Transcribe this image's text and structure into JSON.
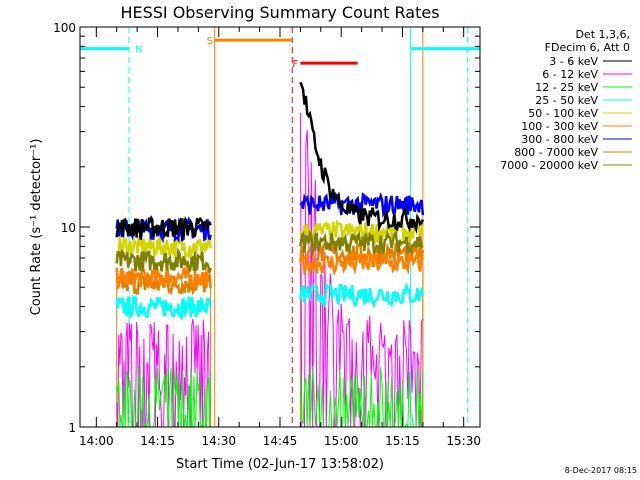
{
  "chart_data": {
    "type": "line",
    "title": "HESSI Observing Summary Count Rates",
    "xlabel": "Start Time (02-Jun-17 13:58:02)",
    "ylabel": "Count Rate (s⁻¹ detector⁻¹)",
    "yscale": "log",
    "ylim": [
      1,
      100
    ],
    "xlim_minutes": [
      -2,
      96
    ],
    "x_tick_labels": [
      "14:00",
      "14:15",
      "14:30",
      "14:45",
      "15:00",
      "15:15",
      "15:30"
    ],
    "x_tick_minutes": [
      2,
      17,
      32,
      47,
      62,
      77,
      92
    ],
    "y_tick_labels": [
      "1",
      "10",
      "100"
    ],
    "y_tick_values": [
      1,
      10,
      100
    ],
    "legend": {
      "header": [
        "Det 1,3,6,",
        "FDecim 6, Att 0"
      ],
      "placement": "top-right outside"
    },
    "series": [
      {
        "name": "3 - 6 keV",
        "color": "#000000"
      },
      {
        "name": "6 - 12 keV",
        "color": "#ff00ff"
      },
      {
        "name": "12 - 25 keV",
        "color": "#00ff00"
      },
      {
        "name": "25 - 50 keV",
        "color": "#00ffff"
      },
      {
        "name": "50 - 100 keV",
        "color": "#d4d400"
      },
      {
        "name": "100 - 300 keV",
        "color": "#ff8000"
      },
      {
        "name": "300 - 800 keV",
        "color": "#0000ff"
      },
      {
        "name": "800 - 7000 keV",
        "color": "#e08000"
      },
      {
        "name": "7000 - 20000 keV",
        "color": "#808000"
      }
    ],
    "intervals": [
      {
        "label": "N",
        "color": "#00ffff",
        "start_min": -2,
        "end_min": 10,
        "level": 78
      },
      {
        "label": "",
        "color": "#00ffff",
        "start_min": 79,
        "end_min": 96,
        "level": 78
      },
      {
        "label": "S",
        "color": "#ff8000",
        "start_min": 31,
        "end_min": 50,
        "level": 86
      },
      {
        "label": "F",
        "color": "#ff0000",
        "start_min": 52,
        "end_min": 66,
        "level": 66
      }
    ],
    "night_lines_min": [
      -2,
      79
    ],
    "night_dashed_min": [
      10,
      93
    ],
    "saa_lines_min": [
      31,
      82
    ],
    "flare_dashed_min": [
      50
    ],
    "data_blocks": [
      {
        "start_min": 7,
        "end_min": 30,
        "levels": {
          "3 - 6 keV": 10,
          "6 - 12 keV": 2.4,
          "12 - 25 keV": 1.4,
          "25 - 50 keV": 4.0,
          "50 - 100 keV": 8.0,
          "100 - 300 keV": 5.6,
          "300 - 800 keV": 9.8,
          "800 - 7000 keV": 5.2,
          "7000 - 20000 keV": 6.8
        }
      },
      {
        "start_min": 52,
        "end_min": 82,
        "levels": {
          "3 - 6 keV": 11,
          "6 - 12 keV": 2.5,
          "12 - 25 keV": 1.4,
          "25 - 50 keV": 4.6,
          "50 - 100 keV": 9.5,
          "100 - 300 keV": 6.6,
          "300 - 800 keV": 13,
          "800 - 7000 keV": 7.4,
          "7000 - 20000 keV": 8.4
        }
      }
    ],
    "footer": "8-Dec-2017 08:15"
  }
}
